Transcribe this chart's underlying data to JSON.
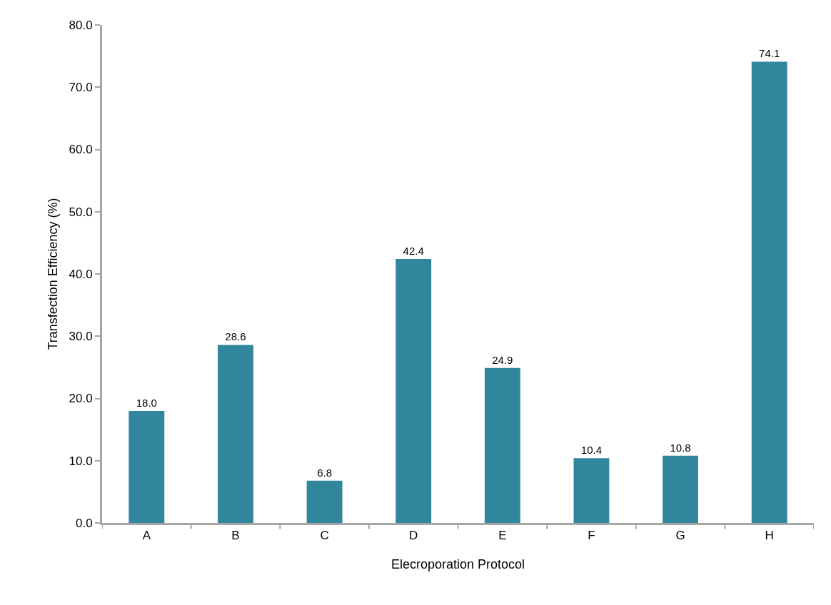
{
  "chart_data": {
    "type": "bar",
    "xlabel": "Elecroporation Protocol",
    "ylabel": "Transfection Efficiency (%)",
    "categories": [
      "A",
      "B",
      "C",
      "D",
      "E",
      "F",
      "G",
      "H"
    ],
    "values": [
      18.0,
      28.6,
      6.8,
      42.4,
      24.9,
      10.4,
      10.8,
      74.1
    ],
    "value_labels": [
      "18.0",
      "28.6",
      "6.8",
      "42.4",
      "24.9",
      "10.4",
      "10.8",
      "74.1"
    ],
    "color": "#31859c",
    "ylim": [
      0,
      80
    ],
    "yticks": [
      {
        "value": 0,
        "label": "0.0"
      },
      {
        "value": 10,
        "label": "10.0"
      },
      {
        "value": 20,
        "label": "20.0"
      },
      {
        "value": 30,
        "label": "30.0"
      },
      {
        "value": 40,
        "label": "40.0"
      },
      {
        "value": 50,
        "label": "50.0"
      },
      {
        "value": 60,
        "label": "60.0"
      },
      {
        "value": 70,
        "label": "70.0"
      },
      {
        "value": 80,
        "label": "80.0"
      }
    ],
    "orientation": "vertical"
  }
}
